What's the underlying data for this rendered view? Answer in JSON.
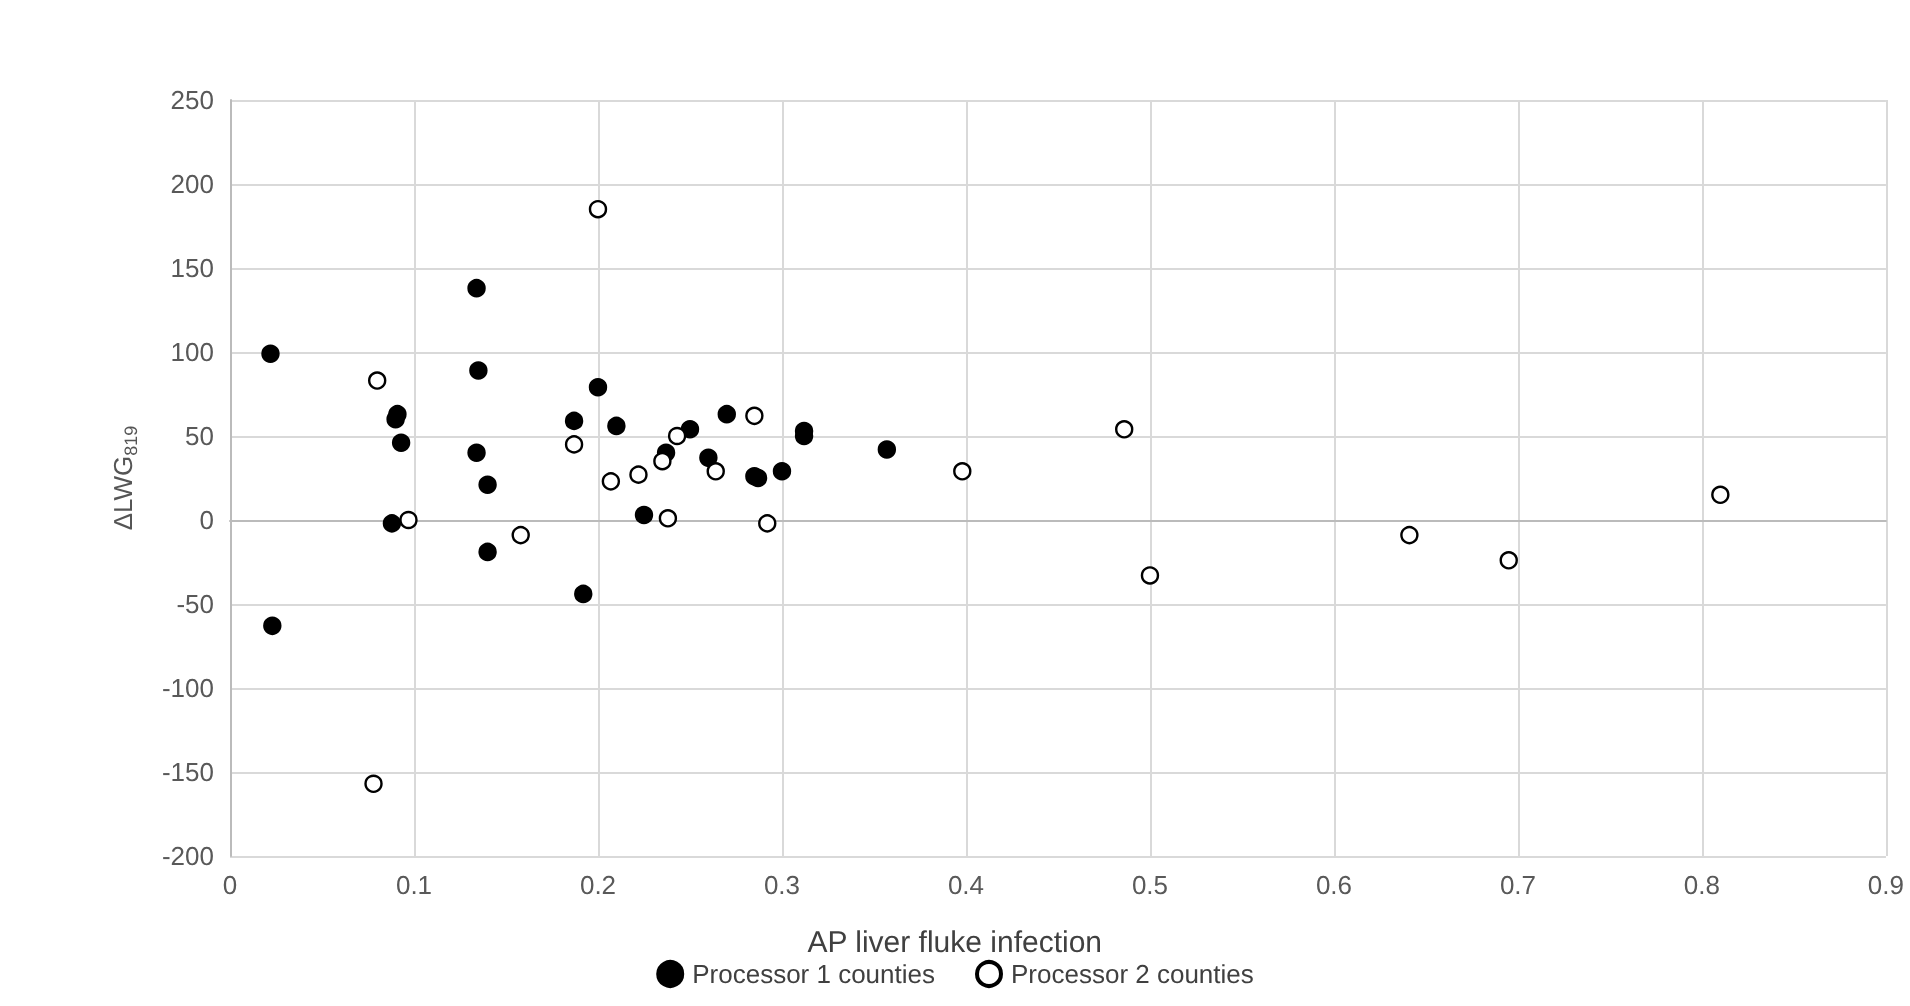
{
  "chart_data": {
    "type": "scatter",
    "xlabel": "AP liver fluke infection",
    "ylabel": "ΔLWG$_{819}$",
    "xlim": [
      0,
      0.9
    ],
    "xticks": [
      0,
      0.1,
      0.2,
      0.3,
      0.4,
      0.5,
      0.6,
      0.7,
      0.8,
      0.9
    ],
    "ylim": [
      -200,
      250
    ],
    "yticks": [
      -200,
      -150,
      -100,
      -50,
      0,
      50,
      100,
      150,
      200,
      250
    ],
    "grid": true,
    "legend": "bottom",
    "marker": "circle",
    "series": [
      {
        "name": "Processor 1 counties",
        "color": "#000000",
        "x": [
          0.022,
          0.023,
          0.09,
          0.091,
          0.093,
          0.088,
          0.134,
          0.135,
          0.134,
          0.14,
          0.14,
          0.187,
          0.2,
          0.192,
          0.21,
          0.225,
          0.237,
          0.25,
          0.27,
          0.26,
          0.285,
          0.287,
          0.3,
          0.312,
          0.312,
          0.357
        ],
        "values": [
          99,
          -63,
          60,
          63,
          46,
          -2,
          138,
          89,
          40,
          21,
          -19,
          59,
          79,
          -44,
          56,
          3,
          40,
          54,
          63,
          37,
          26,
          25,
          29,
          53,
          50,
          42
        ]
      },
      {
        "name": "Processor 2 counties",
        "color": "#ffffff",
        "x": [
          0.08,
          0.078,
          0.097,
          0.158,
          0.2,
          0.187,
          0.207,
          0.222,
          0.235,
          0.243,
          0.238,
          0.264,
          0.285,
          0.292,
          0.398,
          0.486,
          0.5,
          0.641,
          0.695,
          0.81
        ],
        "values": [
          83,
          -157,
          0,
          -9,
          185,
          45,
          23,
          27,
          35,
          50,
          1,
          29,
          62,
          -2,
          29,
          54,
          -33,
          -9,
          -24,
          15
        ]
      }
    ]
  }
}
